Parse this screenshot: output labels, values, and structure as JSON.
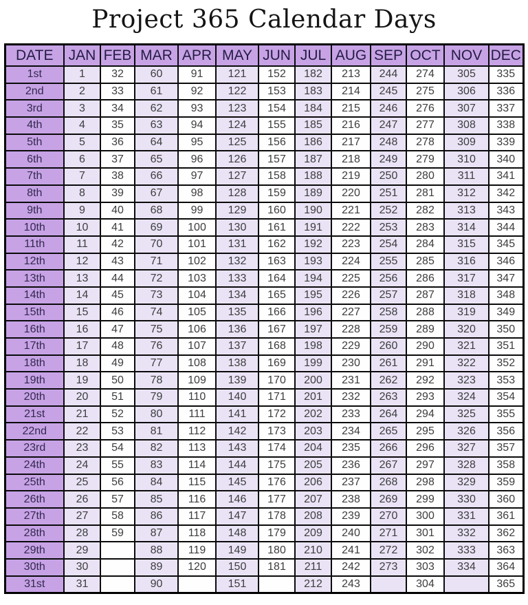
{
  "page": {
    "title": "Project 365 Calendar Days"
  },
  "colors": {
    "header_purple": "#c7a3e6",
    "date_column_purple": "#c7a3e6",
    "odd_month_lavender": "#eae3f6",
    "even_month_white": "#fefefe",
    "border_black": "#000000",
    "header_text": "#241c42",
    "cell_text": "#3d3d3d",
    "title_text": "#141414"
  },
  "chart_data": {
    "type": "table",
    "title": "Project 365 Calendar Days",
    "columns": [
      "DATE",
      "JAN",
      "FEB",
      "MAR",
      "APR",
      "MAY",
      "JUN",
      "JUL",
      "AUG",
      "SEP",
      "OCT",
      "NOV",
      "DEC"
    ],
    "rows": [
      {
        "date": "1st",
        "values": [
          1,
          32,
          60,
          91,
          121,
          152,
          182,
          213,
          244,
          274,
          305,
          335
        ]
      },
      {
        "date": "2nd",
        "values": [
          2,
          33,
          61,
          92,
          122,
          153,
          183,
          214,
          245,
          275,
          306,
          336
        ]
      },
      {
        "date": "3rd",
        "values": [
          3,
          34,
          62,
          93,
          123,
          154,
          184,
          215,
          246,
          276,
          307,
          337
        ]
      },
      {
        "date": "4th",
        "values": [
          4,
          35,
          63,
          94,
          124,
          155,
          185,
          216,
          247,
          277,
          308,
          338
        ]
      },
      {
        "date": "5th",
        "values": [
          5,
          36,
          64,
          95,
          125,
          156,
          186,
          217,
          248,
          278,
          309,
          339
        ]
      },
      {
        "date": "6th",
        "values": [
          6,
          37,
          65,
          96,
          126,
          157,
          187,
          218,
          249,
          279,
          310,
          340
        ]
      },
      {
        "date": "7th",
        "values": [
          7,
          38,
          66,
          97,
          127,
          158,
          188,
          219,
          250,
          280,
          311,
          341
        ]
      },
      {
        "date": "8th",
        "values": [
          8,
          39,
          67,
          98,
          128,
          159,
          189,
          220,
          251,
          281,
          312,
          342
        ]
      },
      {
        "date": "9th",
        "values": [
          9,
          40,
          68,
          99,
          129,
          160,
          190,
          221,
          252,
          282,
          313,
          343
        ]
      },
      {
        "date": "10th",
        "values": [
          10,
          41,
          69,
          100,
          130,
          161,
          191,
          222,
          253,
          283,
          314,
          344
        ]
      },
      {
        "date": "11th",
        "values": [
          11,
          42,
          70,
          101,
          131,
          162,
          192,
          223,
          254,
          284,
          315,
          345
        ]
      },
      {
        "date": "12th",
        "values": [
          12,
          43,
          71,
          102,
          132,
          163,
          193,
          224,
          255,
          285,
          316,
          346
        ]
      },
      {
        "date": "13th",
        "values": [
          13,
          44,
          72,
          103,
          133,
          164,
          194,
          225,
          256,
          286,
          317,
          347
        ]
      },
      {
        "date": "14th",
        "values": [
          14,
          45,
          73,
          104,
          134,
          165,
          195,
          226,
          257,
          287,
          318,
          348
        ]
      },
      {
        "date": "15th",
        "values": [
          15,
          46,
          74,
          105,
          135,
          166,
          196,
          227,
          258,
          288,
          319,
          349
        ]
      },
      {
        "date": "16th",
        "values": [
          16,
          47,
          75,
          106,
          136,
          167,
          197,
          228,
          259,
          289,
          320,
          350
        ]
      },
      {
        "date": "17th",
        "values": [
          17,
          48,
          76,
          107,
          137,
          168,
          198,
          229,
          260,
          290,
          321,
          351
        ]
      },
      {
        "date": "18th",
        "values": [
          18,
          49,
          77,
          108,
          138,
          169,
          199,
          230,
          261,
          291,
          322,
          352
        ]
      },
      {
        "date": "19th",
        "values": [
          19,
          50,
          78,
          109,
          139,
          170,
          200,
          231,
          262,
          292,
          323,
          353
        ]
      },
      {
        "date": "20th",
        "values": [
          20,
          51,
          79,
          110,
          140,
          171,
          201,
          232,
          263,
          293,
          324,
          354
        ]
      },
      {
        "date": "21st",
        "values": [
          21,
          52,
          80,
          111,
          141,
          172,
          202,
          233,
          264,
          294,
          325,
          355
        ]
      },
      {
        "date": "22nd",
        "values": [
          22,
          53,
          81,
          112,
          142,
          173,
          203,
          234,
          265,
          295,
          326,
          356
        ]
      },
      {
        "date": "23rd",
        "values": [
          23,
          54,
          82,
          113,
          143,
          174,
          204,
          235,
          266,
          296,
          327,
          357
        ]
      },
      {
        "date": "24th",
        "values": [
          24,
          55,
          83,
          114,
          144,
          175,
          205,
          236,
          267,
          297,
          328,
          358
        ]
      },
      {
        "date": "25th",
        "values": [
          25,
          56,
          84,
          115,
          145,
          176,
          206,
          237,
          268,
          298,
          329,
          359
        ]
      },
      {
        "date": "26th",
        "values": [
          26,
          57,
          85,
          116,
          146,
          177,
          207,
          238,
          269,
          299,
          330,
          360
        ]
      },
      {
        "date": "27th",
        "values": [
          27,
          58,
          86,
          117,
          147,
          178,
          208,
          239,
          270,
          300,
          331,
          361
        ]
      },
      {
        "date": "28th",
        "values": [
          28,
          59,
          87,
          118,
          148,
          179,
          209,
          240,
          271,
          301,
          332,
          362
        ]
      },
      {
        "date": "29th",
        "values": [
          29,
          null,
          88,
          119,
          149,
          180,
          210,
          241,
          272,
          302,
          333,
          363
        ]
      },
      {
        "date": "30th",
        "values": [
          30,
          null,
          89,
          120,
          150,
          181,
          211,
          242,
          273,
          303,
          334,
          364
        ]
      },
      {
        "date": "31st",
        "values": [
          31,
          null,
          90,
          null,
          151,
          null,
          212,
          243,
          null,
          304,
          null,
          365
        ]
      }
    ]
  }
}
